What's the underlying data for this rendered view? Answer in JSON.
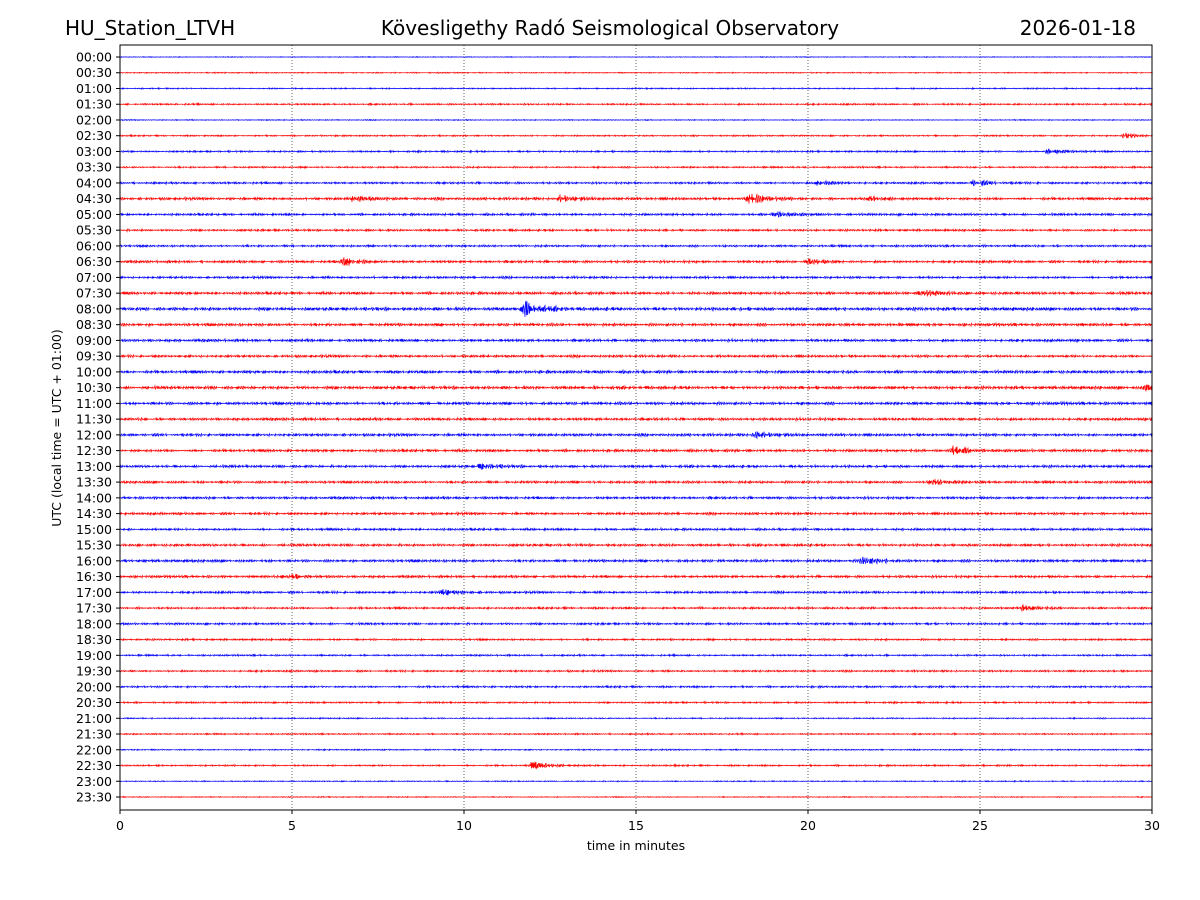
{
  "header": {
    "station": "HU_Station_LTVH",
    "observatory": "Kövesligethy Radó Seismological Observatory",
    "date": "2026-01-18"
  },
  "chart_data": {
    "type": "line",
    "title": "Kövesligethy Radó Seismological Observatory",
    "xlabel": "time in minutes",
    "ylabel": "UTC (local time = UTC + 01:00)",
    "xlim": [
      0,
      30
    ],
    "xticks": [
      "0",
      "5",
      "10",
      "15",
      "20",
      "25",
      "30"
    ],
    "grid": "vertical dotted at every 5 minutes",
    "colors": [
      "#0000ff",
      "#ff0000"
    ],
    "rows": [
      "00:00",
      "00:30",
      "01:00",
      "01:30",
      "02:00",
      "02:30",
      "03:00",
      "03:30",
      "04:00",
      "04:30",
      "05:00",
      "05:30",
      "06:00",
      "06:30",
      "07:00",
      "07:30",
      "08:00",
      "08:30",
      "09:00",
      "09:30",
      "10:00",
      "10:30",
      "11:00",
      "11:30",
      "12:00",
      "12:30",
      "13:00",
      "13:30",
      "14:00",
      "14:30",
      "15:00",
      "15:30",
      "16:00",
      "16:30",
      "17:00",
      "17:30",
      "18:00",
      "18:30",
      "19:00",
      "19:30",
      "20:00",
      "20:30",
      "21:00",
      "21:30",
      "22:00",
      "22:30",
      "23:00",
      "23:30"
    ],
    "noise_level": [
      0.4,
      0.5,
      0.6,
      0.8,
      0.5,
      0.7,
      0.8,
      0.8,
      1.0,
      1.3,
      1.1,
      1.0,
      1.0,
      1.2,
      1.1,
      1.3,
      1.6,
      1.4,
      1.3,
      1.2,
      1.4,
      1.5,
      1.4,
      1.3,
      1.3,
      1.3,
      1.2,
      1.2,
      1.2,
      1.2,
      1.1,
      1.2,
      1.3,
      1.2,
      1.1,
      1.0,
      1.0,
      0.9,
      0.8,
      0.9,
      0.9,
      0.8,
      0.6,
      0.7,
      0.6,
      0.8,
      0.5,
      0.5
    ],
    "events": [
      {
        "row": 5,
        "minute": 29.2,
        "amplitude": 3
      },
      {
        "row": 6,
        "minute": 27.0,
        "amplitude": 3
      },
      {
        "row": 8,
        "minute": 20.3,
        "amplitude": 3
      },
      {
        "row": 8,
        "minute": 24.8,
        "amplitude": 3
      },
      {
        "row": 9,
        "minute": 18.3,
        "amplitude": 6
      },
      {
        "row": 9,
        "minute": 12.8,
        "amplitude": 4
      },
      {
        "row": 9,
        "minute": 6.8,
        "amplitude": 3
      },
      {
        "row": 9,
        "minute": 21.8,
        "amplitude": 3
      },
      {
        "row": 10,
        "minute": 19.0,
        "amplitude": 3
      },
      {
        "row": 13,
        "minute": 6.5,
        "amplitude": 4
      },
      {
        "row": 13,
        "minute": 20.0,
        "amplitude": 3
      },
      {
        "row": 15,
        "minute": 23.3,
        "amplitude": 3
      },
      {
        "row": 16,
        "minute": 11.7,
        "amplitude": 8
      },
      {
        "row": 21,
        "minute": 29.8,
        "amplitude": 3
      },
      {
        "row": 24,
        "minute": 18.5,
        "amplitude": 4
      },
      {
        "row": 25,
        "minute": 24.2,
        "amplitude": 4
      },
      {
        "row": 26,
        "minute": 10.5,
        "amplitude": 3
      },
      {
        "row": 27,
        "minute": 23.6,
        "amplitude": 3
      },
      {
        "row": 32,
        "minute": 21.6,
        "amplitude": 4
      },
      {
        "row": 33,
        "minute": 4.8,
        "amplitude": 3
      },
      {
        "row": 34,
        "minute": 9.3,
        "amplitude": 3
      },
      {
        "row": 35,
        "minute": 26.2,
        "amplitude": 3
      },
      {
        "row": 45,
        "minute": 12.0,
        "amplitude": 4
      }
    ]
  }
}
